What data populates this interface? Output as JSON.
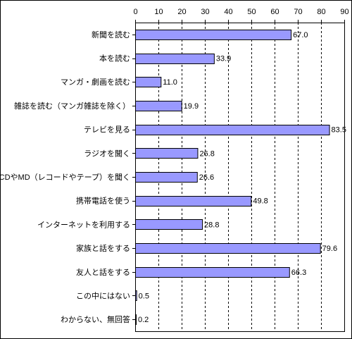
{
  "chart_data": {
    "type": "bar",
    "orientation": "horizontal",
    "categories": [
      "新聞を読む",
      "本を読む",
      "マンガ・劇画を読む",
      "雑誌を読む（マンガ雑誌を除く）",
      "テレビを見る",
      "ラジオを聞く",
      "CDやMD（レコードやテープ）を聞く",
      "携帯電話を使う",
      "インターネットを利用する",
      "家族と話をする",
      "友人と話をする",
      "この中にはない",
      "わからない、無回答"
    ],
    "values": [
      67.0,
      33.9,
      11.0,
      19.9,
      83.5,
      26.8,
      26.6,
      49.8,
      28.8,
      79.6,
      66.3,
      0.5,
      0.2
    ],
    "value_labels": [
      "67.0",
      "33.9",
      "11.0",
      "19.9",
      "83.5",
      "26.8",
      "26.6",
      "49.8",
      "28.8",
      "79.6",
      "66.3",
      "0.5",
      "0.2"
    ],
    "xlim": [
      0,
      90
    ],
    "ticks": [
      0,
      10,
      20,
      30,
      40,
      50,
      60,
      70,
      80,
      90
    ],
    "tick_labels": [
      "0",
      "10",
      "20",
      "30",
      "40",
      "50",
      "60",
      "70",
      "80",
      "90"
    ],
    "axis_position": "top",
    "grid": true,
    "bar_color": "#9999ff",
    "bar_border_color": "#000000"
  }
}
